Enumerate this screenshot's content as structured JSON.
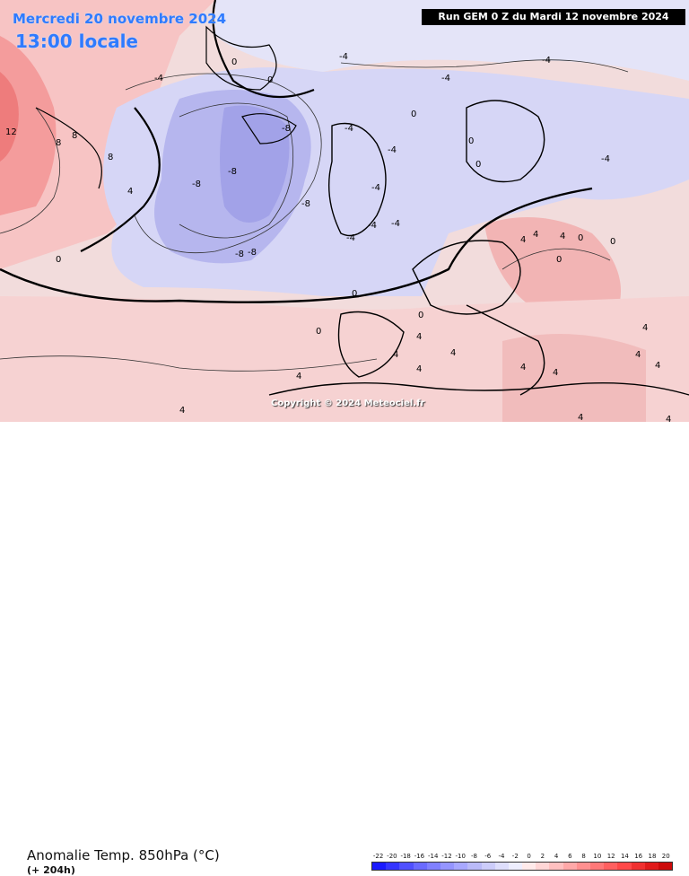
{
  "header": {
    "date": "Mercredi 20 novembre 2024",
    "time": "13:00 locale",
    "run": "Run GEM 0 Z du Mardi 12 novembre 2024"
  },
  "copyright": "Copyright © 2024 Meteociel.fr",
  "footer": {
    "title": "Anomalie Temp. 850hPa (°C)",
    "lead": "(+ 204h)"
  },
  "legend": {
    "labels": [
      "-22",
      "-20",
      "-18",
      "-16",
      "-14",
      "-12",
      "-10",
      "-8",
      "-6",
      "-4",
      "-2",
      "0",
      "2",
      "4",
      "6",
      "8",
      "10",
      "12",
      "14",
      "16",
      "18",
      "20"
    ],
    "colors": [
      "#1a1aff",
      "#3535ff",
      "#5050ff",
      "#6a6aff",
      "#8080ff",
      "#9595ff",
      "#a8a8ff",
      "#babaf8",
      "#ccccfa",
      "#dedefc",
      "#eeeefe",
      "#ffeaea",
      "#ffd6d6",
      "#ffc0c0",
      "#ffa8a8",
      "#ff9090",
      "#ff7878",
      "#ff6060",
      "#ff4848",
      "#f03030",
      "#e01a1a",
      "#cc0a0a"
    ]
  },
  "contour_labels": [
    {
      "t": "-4"
    },
    {
      "t": "-4"
    },
    {
      "t": "-4"
    },
    {
      "t": "-4"
    },
    {
      "t": "-8"
    },
    {
      "t": "-8"
    },
    {
      "t": "-8"
    },
    {
      "t": "-8"
    },
    {
      "t": "-8"
    },
    {
      "t": "-8"
    },
    {
      "t": "-4"
    },
    {
      "t": "-4"
    },
    {
      "t": "-4"
    },
    {
      "t": "-4"
    },
    {
      "t": "-4"
    },
    {
      "t": "-4"
    },
    {
      "t": "-4"
    },
    {
      "t": "0"
    },
    {
      "t": "0"
    },
    {
      "t": "0"
    },
    {
      "t": "0"
    },
    {
      "t": "0"
    },
    {
      "t": "0"
    },
    {
      "t": "0"
    },
    {
      "t": "4"
    },
    {
      "t": "4"
    },
    {
      "t": "4"
    },
    {
      "t": "4"
    },
    {
      "t": "4"
    },
    {
      "t": "4"
    },
    {
      "t": "4"
    },
    {
      "t": "4"
    },
    {
      "t": "4"
    },
    {
      "t": "4"
    },
    {
      "t": "4"
    },
    {
      "t": "4"
    },
    {
      "t": "8"
    },
    {
      "t": "8"
    },
    {
      "t": "8"
    },
    {
      "t": "12"
    },
    {
      "t": "0"
    },
    {
      "t": "0"
    },
    {
      "t": "0"
    },
    {
      "t": "4"
    },
    {
      "t": "4"
    },
    {
      "t": "4"
    },
    {
      "t": "4"
    },
    {
      "t": "4"
    },
    {
      "t": "0"
    },
    {
      "t": "0"
    }
  ]
}
